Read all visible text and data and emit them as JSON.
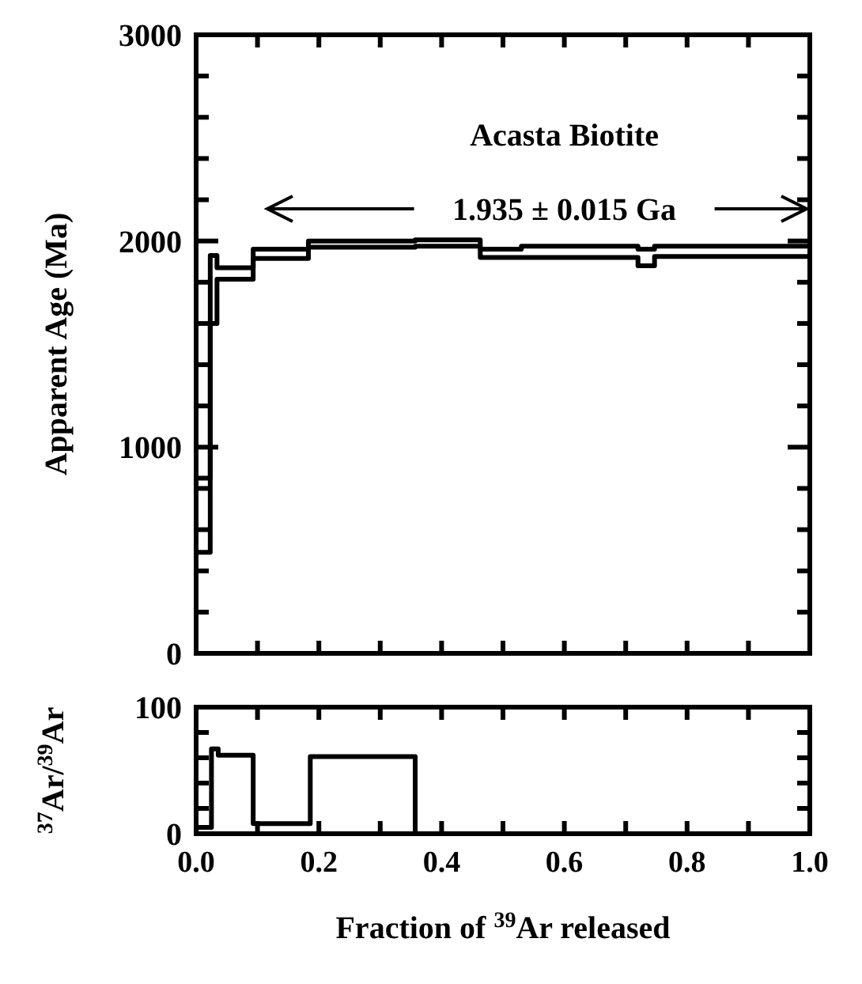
{
  "chart_data": [
    {
      "type": "step",
      "title": "Acasta Biotite",
      "ylabel": "Apparent Age (Ma)",
      "annotations": [
        "1.935 ± 0.015 Ga"
      ],
      "series": [
        {
          "color": "#000000",
          "x": [
            0,
            0.023,
            0.034,
            0.093,
            0.183,
            0.357,
            0.463,
            0.53,
            0.72,
            0.747,
            1.0
          ],
          "values": [
            850,
            1930,
            1870,
            1960,
            2000,
            2005,
            1960,
            1975,
            1960,
            1975,
            1975
          ]
        },
        {
          "color": "#000000",
          "x": [
            0,
            0.023,
            0.034,
            0.093,
            0.183,
            0.357,
            0.463,
            0.53,
            0.72,
            0.747,
            1.0
          ],
          "values": [
            490,
            1600,
            1815,
            1915,
            1970,
            1975,
            1920,
            1920,
            1880,
            1925,
            1925
          ]
        }
      ],
      "xlim": [
        0,
        1
      ],
      "ylim": [
        0,
        3000
      ],
      "xticks": [
        {
          "value": 0,
          "label": null
        },
        {
          "value": 0.1,
          "label": null
        },
        {
          "value": 0.2,
          "label": null
        },
        {
          "value": 0.3,
          "label": null
        },
        {
          "value": 0.4,
          "label": null
        },
        {
          "value": 0.5,
          "label": null
        },
        {
          "value": 0.6,
          "label": null
        },
        {
          "value": 0.7,
          "label": null
        },
        {
          "value": 0.8,
          "label": null
        },
        {
          "value": 0.9,
          "label": null
        },
        {
          "value": 1,
          "label": null
        }
      ],
      "yticks": [
        0,
        {
          "value": 200,
          "label": null
        },
        {
          "value": 400,
          "label": null
        },
        {
          "value": 600,
          "label": null
        },
        {
          "value": 800,
          "label": null
        },
        1000,
        {
          "value": 1200,
          "label": null
        },
        {
          "value": 1400,
          "label": null
        },
        {
          "value": 1600,
          "label": null
        },
        {
          "value": 1800,
          "label": null
        },
        2000,
        {
          "value": 2200,
          "label": null
        },
        {
          "value": 2400,
          "label": null
        },
        {
          "value": 2600,
          "label": null
        },
        {
          "value": 2800,
          "label": null
        },
        3000
      ],
      "tick_labels": "y",
      "grid": false,
      "line_style": "solid"
    },
    {
      "type": "step",
      "xlabel": "Fraction of $^{39}$Ar released",
      "ylabel": "$^{37}$Ar/$^{39}$Ar",
      "series": [
        {
          "color": "#000000",
          "x": [
            0,
            0.025,
            0.036,
            0.093,
            0.186,
            0.357,
            1.0
          ],
          "values": [
            5,
            67,
            62,
            8,
            61,
            0,
            0
          ]
        }
      ],
      "xlim": [
        0,
        1
      ],
      "ylim": [
        0,
        100
      ],
      "xticks": [
        {
          "value": 0,
          "label": "0.0"
        },
        {
          "value": 0.1,
          "label": null
        },
        {
          "value": 0.2,
          "label": "0.2"
        },
        {
          "value": 0.3,
          "label": null
        },
        {
          "value": 0.4,
          "label": "0.4"
        },
        {
          "value": 0.5,
          "label": null
        },
        {
          "value": 0.6,
          "label": "0.6"
        },
        {
          "value": 0.7,
          "label": null
        },
        {
          "value": 0.8,
          "label": "0.8"
        },
        {
          "value": 0.9,
          "label": null
        },
        {
          "value": 1,
          "label": "1.0"
        }
      ],
      "yticks": [
        0,
        {
          "value": 20,
          "label": null
        },
        {
          "value": 40,
          "label": null
        },
        {
          "value": 60,
          "label": null
        },
        {
          "value": 80,
          "label": null
        },
        100
      ],
      "grid": false,
      "line_style": "solid"
    }
  ]
}
